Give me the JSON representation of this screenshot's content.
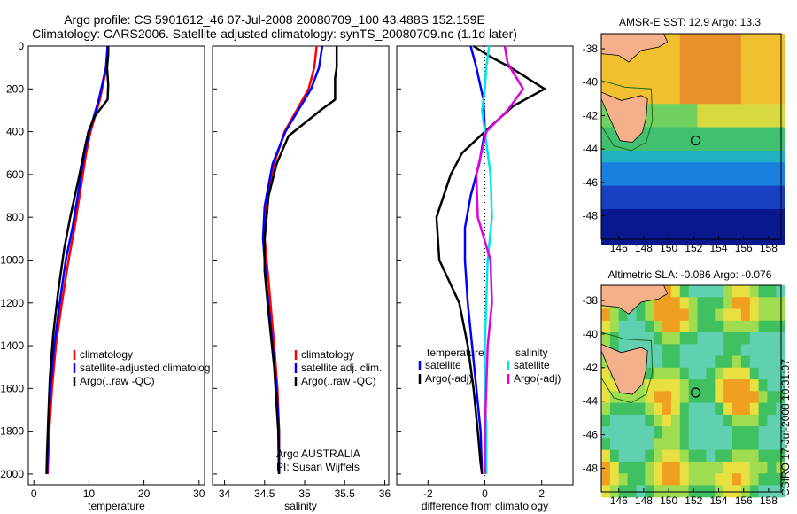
{
  "header": {
    "title_line1": "Argo profile: CS 5901612_46 07-Jul-2008 20080709_100 43.488S 152.159E",
    "title_line2": "Climatology: CARS2006. Satellite-adjusted climatology: synTS_20080709.nc (1.1d later)"
  },
  "colors": {
    "climatology": "#ff0000",
    "satellite": "#0000ff",
    "argo": "#000000",
    "salinity_satellite": "#00e5e5",
    "salinity_argo": "#e000e0",
    "land": "#f4b08a"
  },
  "depth_ticks": [
    "0",
    "200",
    "400",
    "600",
    "800",
    "1000",
    "1200",
    "1400",
    "1600",
    "1800",
    "2000"
  ],
  "chart_data": [
    {
      "type": "line",
      "xlabel": "temperature",
      "ylabel": "",
      "xlim": [
        -1,
        31
      ],
      "ylim": [
        2050,
        0
      ],
      "xticks": [
        "0",
        "10",
        "20",
        "30"
      ],
      "legend": {
        "placement": "lower-left",
        "entries": [
          "climatology",
          "satellite-adjusted climatolog",
          "Argo(..raw -QC)"
        ]
      },
      "series": [
        {
          "name": "climatology",
          "color": "red",
          "x": [
            13.4,
            13.2,
            12.0,
            10.3,
            9.5,
            8.6,
            7.4,
            6.3,
            5.1,
            4.0,
            3.3,
            2.8,
            2.5
          ],
          "y": [
            0,
            100,
            250,
            400,
            500,
            650,
            850,
            1000,
            1200,
            1400,
            1600,
            1800,
            2000
          ]
        },
        {
          "name": "satellite-adjusted climatolog",
          "color": "blue",
          "x": [
            13.4,
            13.1,
            11.8,
            10.1,
            9.2,
            8.3,
            7.0,
            5.8,
            4.7,
            3.7,
            3.0,
            2.6,
            2.4
          ],
          "y": [
            0,
            100,
            250,
            400,
            500,
            650,
            850,
            1000,
            1200,
            1400,
            1600,
            1800,
            2000
          ]
        },
        {
          "name": "Argo(..raw -QC)",
          "color": "black",
          "x": [
            13.5,
            13.5,
            13.3,
            13.5,
            13.4,
            11.0,
            9.9,
            9.3,
            8.3,
            6.6,
            5.5,
            4.4,
            3.5,
            2.9,
            2.6,
            2.4,
            2.3
          ],
          "y": [
            0,
            40,
            100,
            180,
            250,
            330,
            400,
            470,
            600,
            800,
            950,
            1150,
            1350,
            1550,
            1750,
            1900,
            2000
          ]
        }
      ]
    },
    {
      "type": "line",
      "xlabel": "salinity",
      "ylabel": "",
      "xlim": [
        33.85,
        36.05
      ],
      "ylim": [
        2050,
        0
      ],
      "xticks": [
        "34",
        "34.5",
        "35",
        "35.5",
        "36"
      ],
      "legend": {
        "placement": "lower-left",
        "entries": [
          "climatology",
          "satellite adj. clim.",
          "Argo(..raw -QC)"
        ]
      },
      "annotation": [
        "Argo AUSTRALIA",
        "PI: Susan Wijffels"
      ],
      "series": [
        {
          "name": "climatology",
          "color": "red",
          "x": [
            35.15,
            35.12,
            35.05,
            34.9,
            34.75,
            34.62,
            34.52,
            34.5,
            34.55,
            34.62,
            34.66,
            34.68,
            34.68
          ],
          "y": [
            0,
            100,
            200,
            300,
            400,
            550,
            750,
            900,
            1100,
            1400,
            1600,
            1800,
            2000
          ]
        },
        {
          "name": "satellite adj. clim.",
          "color": "blue",
          "x": [
            35.22,
            35.18,
            35.08,
            34.92,
            34.76,
            34.6,
            34.5,
            34.48,
            34.52,
            34.6,
            34.65,
            34.68,
            34.68
          ],
          "y": [
            0,
            100,
            200,
            300,
            400,
            550,
            750,
            900,
            1100,
            1400,
            1600,
            1800,
            2000
          ]
        },
        {
          "name": "Argo(..raw -QC)",
          "color": "black",
          "x": [
            35.4,
            35.4,
            35.38,
            35.38,
            35.2,
            35.0,
            34.8,
            34.65,
            34.55,
            34.5,
            34.5,
            34.55,
            34.62,
            34.67,
            34.68
          ],
          "y": [
            0,
            100,
            150,
            250,
            300,
            360,
            420,
            550,
            700,
            900,
            1050,
            1250,
            1500,
            1800,
            2000
          ]
        }
      ]
    },
    {
      "type": "line",
      "xlabel": "difference from climatology",
      "ylabel": "",
      "xlim": [
        -3.1,
        3.1
      ],
      "ylim": [
        2050,
        0
      ],
      "xticks": [
        "-2",
        "0",
        "2"
      ],
      "zero_line": true,
      "legend": {
        "placement": "lower",
        "entries": [
          "temperature",
          "satellite",
          "Argo(-adj)",
          "salinity",
          "satellite",
          "Argo(-adj)"
        ]
      },
      "series": [
        {
          "name": "temperature satellite",
          "color": "blue",
          "x": [
            -0.5,
            -0.3,
            -0.05,
            0,
            -0.2,
            -0.5,
            -0.7,
            -0.7,
            -0.6,
            -0.45,
            -0.3,
            -0.15,
            -0.1
          ],
          "y": [
            0,
            100,
            250,
            400,
            550,
            700,
            850,
            1000,
            1200,
            1400,
            1600,
            1800,
            2000
          ]
        },
        {
          "name": "temperature Argo(-adj)",
          "color": "black",
          "x": [
            -0.4,
            0.2,
            0.9,
            2.1,
            1.0,
            0,
            -0.8,
            -1.2,
            -1.7,
            -1.6,
            -0.9,
            -0.6,
            -0.4,
            -0.25,
            -0.15,
            -0.1
          ],
          "y": [
            0,
            50,
            100,
            200,
            280,
            400,
            500,
            600,
            800,
            1000,
            1200,
            1400,
            1600,
            1800,
            1950,
            2000
          ]
        },
        {
          "name": "salinity satellite",
          "color": "cyan",
          "x": [
            0.15,
            0.05,
            0,
            -0.1,
            0,
            0.2,
            0.25,
            0.1,
            0.05,
            0,
            0,
            0.05,
            0.05
          ],
          "y": [
            0,
            100,
            200,
            300,
            400,
            600,
            800,
            1000,
            1200,
            1400,
            1600,
            1800,
            2000
          ]
        },
        {
          "name": "salinity Argo(-adj)",
          "color": "magenta",
          "x": [
            0.7,
            0.8,
            1.35,
            0.8,
            0.05,
            -0.3,
            -0.25,
            0.2,
            0.25,
            0.1,
            0.05,
            0,
            0
          ],
          "y": [
            0,
            80,
            200,
            300,
            400,
            600,
            800,
            1000,
            1200,
            1400,
            1600,
            1800,
            2000
          ]
        }
      ]
    }
  ],
  "maps": [
    {
      "title": "AMSR-E SST: 12.9 Argo: 13.3",
      "xticks": [
        "146",
        "148",
        "150",
        "152",
        "154",
        "156",
        "158"
      ],
      "yticks": [
        "-38",
        "-40",
        "-42",
        "-44",
        "-46",
        "-48"
      ]
    },
    {
      "title": "Altimetric SLA: -0.086 Argo: -0.076",
      "xticks": [
        "146",
        "148",
        "150",
        "152",
        "154",
        "156",
        "158"
      ],
      "yticks": [
        "-38",
        "-40",
        "-42",
        "-44",
        "-46",
        "-48"
      ]
    }
  ],
  "footer": {
    "credit": "CSIRO 17-Jul-2008 10:31:07"
  }
}
